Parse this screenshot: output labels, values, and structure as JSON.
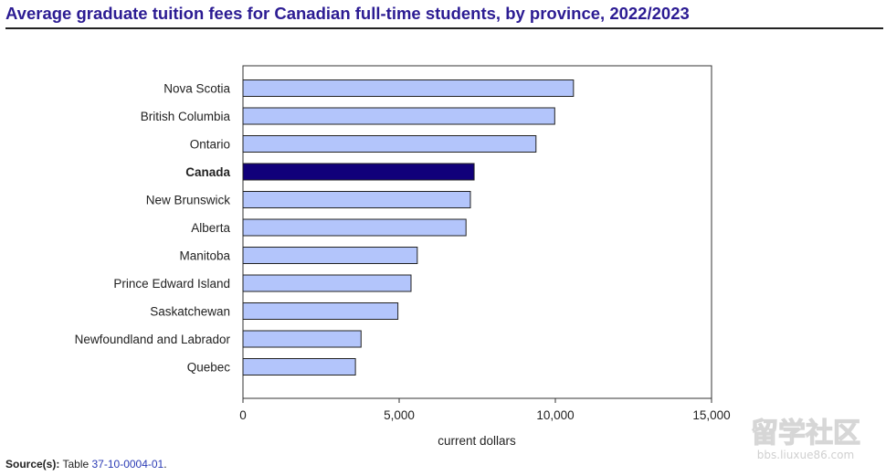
{
  "page": {
    "title": "Average graduate tuition fees for Canadian full-time students, by province, 2022/2023",
    "source_label": "Source(s):",
    "source_text": "Table",
    "source_link": "37-10-0004-01",
    "source_end": "."
  },
  "chart_data": {
    "type": "bar",
    "orientation": "horizontal",
    "categories": [
      "Nova Scotia",
      "British Columbia",
      "Ontario",
      "Canada",
      "New Brunswick",
      "Alberta",
      "Manitoba",
      "Prince Edward Island",
      "Saskatchewan",
      "Newfoundland and Labrador",
      "Quebec"
    ],
    "values": [
      10580,
      9980,
      9380,
      7400,
      7280,
      7140,
      5580,
      5380,
      4960,
      3780,
      3600
    ],
    "highlight": "Canada",
    "bar_color": "#b3c5fb",
    "highlight_color": "#11007a",
    "xlabel": "current dollars",
    "xlim": [
      0,
      15000
    ],
    "xticks": [
      0,
      5000,
      10000,
      15000
    ],
    "xtick_labels": [
      "0",
      "5,000",
      "10,000",
      "15,000"
    ],
    "grid": false
  },
  "watermark": {
    "main": "留学社区",
    "sub": "bbs.liuxue86.com"
  }
}
